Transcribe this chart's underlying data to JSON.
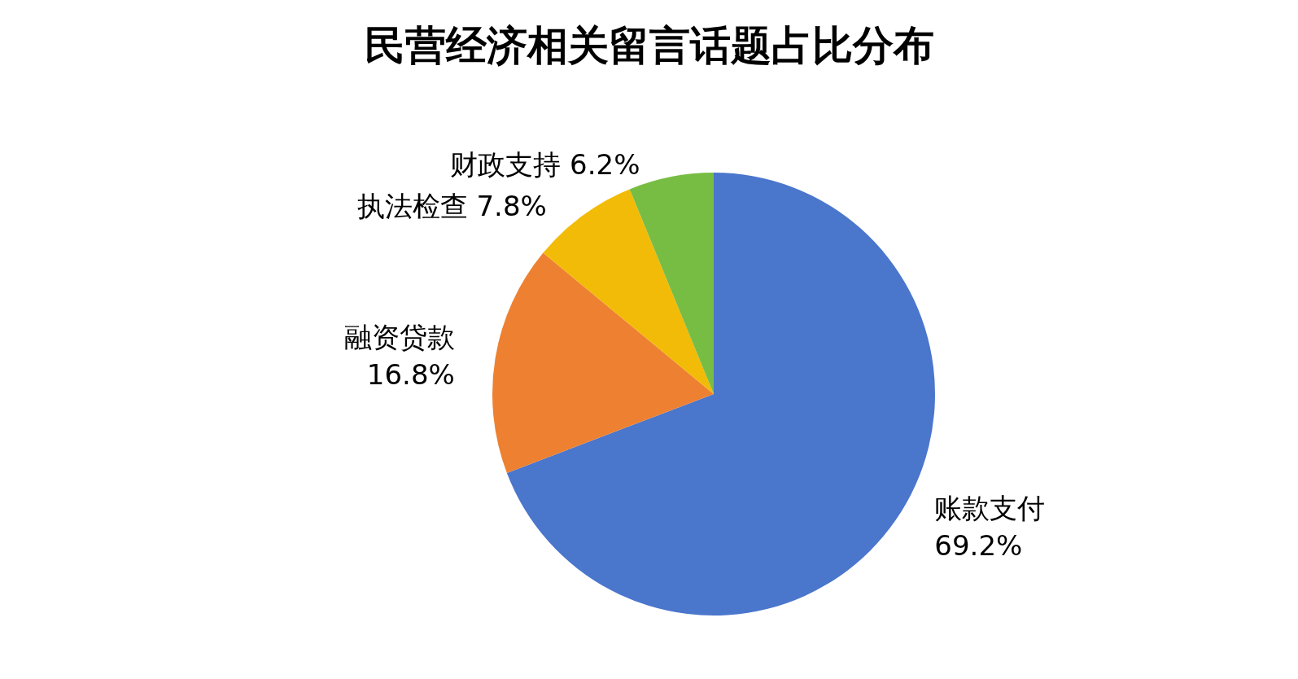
{
  "chart_data": {
    "type": "pie",
    "title": "民营经济相关留言话题占比分布",
    "categories": [
      "账款支付",
      "融资贷款",
      "执法检查",
      "财政支持"
    ],
    "values": [
      69.2,
      16.8,
      7.8,
      6.2
    ],
    "colors": [
      "#4a76cc",
      "#ed8131",
      "#f2bb07",
      "#77bd43"
    ],
    "value_labels": [
      "69.2%",
      "16.8%",
      "7.8%",
      "6.2%"
    ],
    "legend": false
  }
}
